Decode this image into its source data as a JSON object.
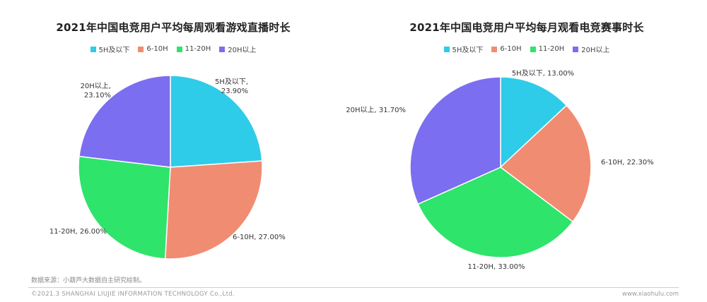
{
  "colors": {
    "5H及以下": "#2ecce8",
    "6-10H": "#f08c72",
    "11-20H": "#2ee46a",
    "20H以上": "#7b6ef0"
  },
  "chart_data": [
    {
      "type": "pie",
      "title": "2021年中国电竞用户平均每周观看游戏直播时长",
      "legend": [
        "5H及以下",
        "6-10H",
        "11-20H",
        "20H以上"
      ],
      "legend_position": "top",
      "slices": [
        {
          "label": "5H及以下,",
          "value": 23.9,
          "value_text": "23.90%"
        },
        {
          "label": "6-10H,",
          "value": 27.0,
          "value_text": "27.00%"
        },
        {
          "label": "11-20H,",
          "value": 26.0,
          "value_text": "26.00%"
        },
        {
          "label": "20H以上,",
          "value": 23.1,
          "value_text": "23.10%"
        }
      ]
    },
    {
      "type": "pie",
      "title": "2021年中国电竞用户平均每月观看电竞赛事时长",
      "legend": [
        "5H及以下",
        "6-10H",
        "11-20H",
        "20H以上"
      ],
      "legend_position": "top",
      "slices": [
        {
          "label": "5H及以下,",
          "value": 13.0,
          "value_text": "13.00%"
        },
        {
          "label": "6-10H,",
          "value": 22.3,
          "value_text": "22.30%"
        },
        {
          "label": "11-20H,",
          "value": 33.0,
          "value_text": "33.00%"
        },
        {
          "label": "20H以上,",
          "value": 31.7,
          "value_text": "31.70%"
        }
      ]
    }
  ],
  "source": "数据来源：小葫芦大数据自主研究绘制。",
  "footer": {
    "copyright": "©2021.3 SHANGHAI LIUJIE INFORMATION  TECHNOLOGY Co.,Ltd.",
    "website": "www.xiaohulu.com"
  }
}
